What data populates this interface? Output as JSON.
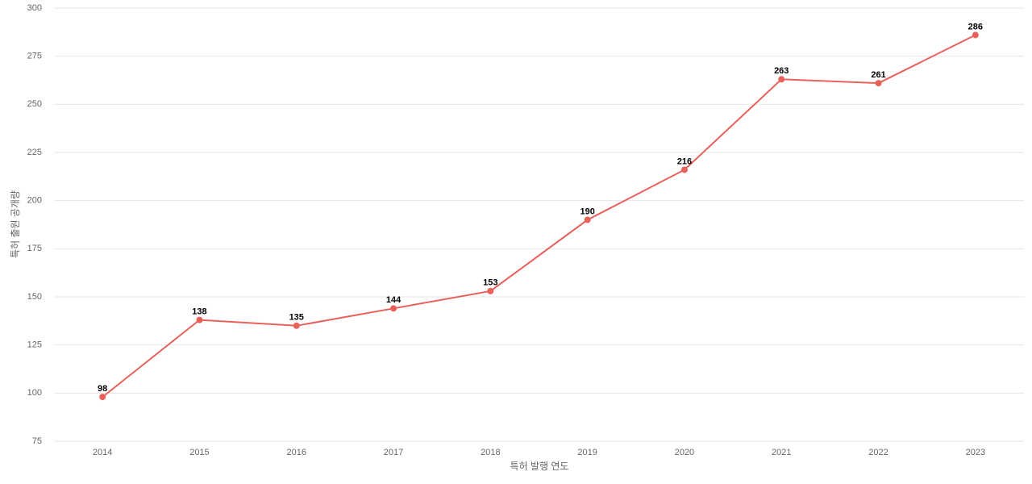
{
  "chart_data": {
    "type": "line",
    "x_label": "특허 발행 연도",
    "y_label": "특허 출원 공개량",
    "categories": [
      "2014",
      "2015",
      "2016",
      "2017",
      "2018",
      "2019",
      "2020",
      "2021",
      "2022",
      "2023"
    ],
    "values": [
      98,
      138,
      135,
      144,
      153,
      190,
      216,
      263,
      261,
      286
    ],
    "color": "#e8605a",
    "ylim": [
      75,
      300
    ],
    "yticks": [
      75,
      100,
      125,
      150,
      175,
      200,
      225,
      250,
      275,
      300
    ],
    "grid": true
  }
}
